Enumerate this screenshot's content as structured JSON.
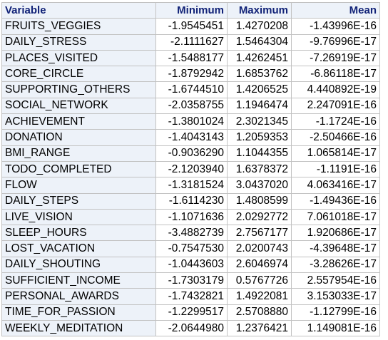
{
  "table": {
    "headers": [
      "Variable",
      "Minimum",
      "Maximum",
      "Mean"
    ],
    "rows": [
      [
        "FRUITS_VEGGIES",
        "-1.9545451",
        "1.4270208",
        "-1.43996E-16"
      ],
      [
        "DAILY_STRESS",
        "-2.1111627",
        "1.5464304",
        "-9.76996E-17"
      ],
      [
        "PLACES_VISITED",
        "-1.5488177",
        "1.4262451",
        "-7.26919E-17"
      ],
      [
        "CORE_CIRCLE",
        "-1.8792942",
        "1.6853762",
        "-6.86118E-17"
      ],
      [
        "SUPPORTING_OTHERS",
        "-1.6744510",
        "1.4206525",
        "4.440892E-19"
      ],
      [
        "SOCIAL_NETWORK",
        "-2.0358755",
        "1.1946474",
        "2.247091E-16"
      ],
      [
        "ACHIEVEMENT",
        "-1.3801024",
        "2.3021345",
        "-1.1724E-16"
      ],
      [
        "DONATION",
        "-1.4043143",
        "1.2059353",
        "-2.50466E-16"
      ],
      [
        "BMI_RANGE",
        "-0.9036290",
        "1.1044355",
        "1.065814E-17"
      ],
      [
        "TODO_COMPLETED",
        "-2.1203940",
        "1.6378372",
        "-1.1191E-16"
      ],
      [
        "FLOW",
        "-1.3181524",
        "3.0437020",
        "4.063416E-17"
      ],
      [
        "DAILY_STEPS",
        "-1.6114230",
        "1.4808599",
        "-1.49436E-16"
      ],
      [
        "LIVE_VISION",
        "-1.1071636",
        "2.0292772",
        "7.061018E-17"
      ],
      [
        "SLEEP_HOURS",
        "-3.4882739",
        "2.7567177",
        "1.920686E-17"
      ],
      [
        "LOST_VACATION",
        "-0.7547530",
        "2.0200743",
        "-4.39648E-17"
      ],
      [
        "DAILY_SHOUTING",
        "-1.0443603",
        "2.6046974",
        "-3.28626E-17"
      ],
      [
        "SUFFICIENT_INCOME",
        "-1.7303179",
        "0.5767726",
        "2.557954E-16"
      ],
      [
        "PERSONAL_AWARDS",
        "-1.7432821",
        "1.4922081",
        "3.153033E-17"
      ],
      [
        "TIME_FOR_PASSION",
        "-1.2299517",
        "2.5708880",
        "-1.12799E-16"
      ],
      [
        "WEEKLY_MEDITATION",
        "-2.0644980",
        "1.2376421",
        "1.149081E-16"
      ]
    ]
  },
  "colors": {
    "header_background": "#edf2f9",
    "header_text": "#112277",
    "row_header_background": "#edf2f9",
    "cell_background": "#ffffff",
    "border": "#c2c2c2"
  }
}
